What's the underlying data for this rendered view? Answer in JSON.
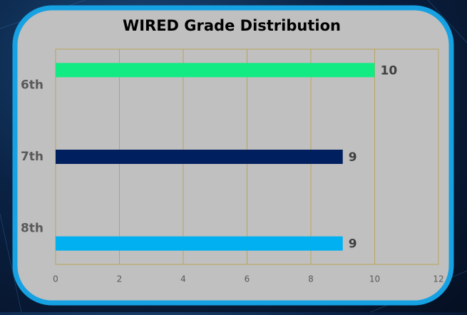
{
  "chart_data": {
    "type": "bar",
    "orientation": "horizontal",
    "title": "WIRED Grade Distribution",
    "categories": [
      "6th",
      "7th",
      "8th"
    ],
    "values": [
      10,
      9,
      9
    ],
    "colors": [
      "#12eb84",
      "#001f5e",
      "#00b0f0"
    ],
    "xlim": [
      0,
      12
    ],
    "xticks": [
      0,
      2,
      4,
      6,
      8,
      10,
      12
    ],
    "grid": true
  }
}
